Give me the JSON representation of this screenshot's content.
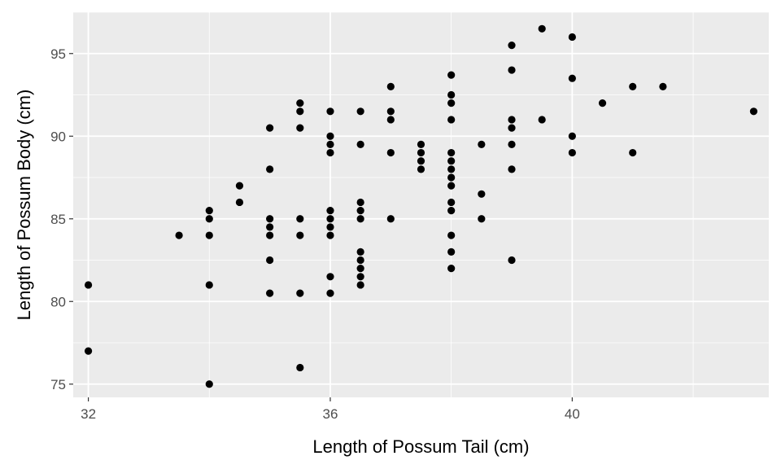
{
  "chart_data": {
    "type": "scatter",
    "title": "",
    "xlabel": "Length of Possum Tail (cm)",
    "ylabel": "Length of Possum Body (cm)",
    "xlim": [
      31.75,
      43.25
    ],
    "ylim": [
      74.2,
      97.5
    ],
    "xticks": [
      32,
      36,
      40
    ],
    "xtick_labels": [
      "32",
      "36",
      "40"
    ],
    "yticks": [
      75,
      80,
      85,
      90,
      95
    ],
    "ytick_labels": [
      "75",
      "80",
      "85",
      "90",
      "95"
    ],
    "grid": true,
    "legend": "none",
    "colors": {
      "panel": "#ebebeb",
      "grid": "#ffffff",
      "point": "#000000"
    },
    "points": [
      [
        32,
        81
      ],
      [
        32,
        77
      ],
      [
        33.5,
        84
      ],
      [
        34,
        85.5
      ],
      [
        34,
        85
      ],
      [
        34,
        84
      ],
      [
        34,
        81
      ],
      [
        34,
        75
      ],
      [
        34.5,
        87
      ],
      [
        34.5,
        86
      ],
      [
        35,
        90.5
      ],
      [
        35,
        88
      ],
      [
        35,
        85
      ],
      [
        35,
        84.5
      ],
      [
        35,
        84
      ],
      [
        35,
        82.5
      ],
      [
        35,
        80.5
      ],
      [
        35.5,
        92
      ],
      [
        35.5,
        91.5
      ],
      [
        35.5,
        90.5
      ],
      [
        35.5,
        85
      ],
      [
        35.5,
        84
      ],
      [
        35.5,
        80.5
      ],
      [
        35.5,
        76
      ],
      [
        36,
        91.5
      ],
      [
        36,
        90
      ],
      [
        36,
        89.5
      ],
      [
        36,
        89
      ],
      [
        36,
        85.5
      ],
      [
        36,
        85
      ],
      [
        36,
        84.5
      ],
      [
        36,
        84
      ],
      [
        36,
        81.5
      ],
      [
        36,
        80.5
      ],
      [
        36.5,
        91.5
      ],
      [
        36.5,
        89.5
      ],
      [
        36.5,
        86
      ],
      [
        36.5,
        85.5
      ],
      [
        36.5,
        85
      ],
      [
        36.5,
        83
      ],
      [
        36.5,
        82.5
      ],
      [
        36.5,
        82
      ],
      [
        36.5,
        81.5
      ],
      [
        36.5,
        81
      ],
      [
        37,
        93
      ],
      [
        37,
        91.5
      ],
      [
        37,
        91
      ],
      [
        37,
        89
      ],
      [
        37,
        85
      ],
      [
        37.5,
        89.5
      ],
      [
        37.5,
        89
      ],
      [
        37.5,
        88.5
      ],
      [
        37.5,
        88
      ],
      [
        38,
        93.7
      ],
      [
        38,
        92.5
      ],
      [
        38,
        92
      ],
      [
        38,
        91
      ],
      [
        38,
        89
      ],
      [
        38,
        88.5
      ],
      [
        38,
        88
      ],
      [
        38,
        87.5
      ],
      [
        38,
        87
      ],
      [
        38,
        86
      ],
      [
        38,
        85.5
      ],
      [
        38,
        84
      ],
      [
        38,
        83
      ],
      [
        38,
        82
      ],
      [
        38.5,
        89.5
      ],
      [
        38.5,
        86.5
      ],
      [
        38.5,
        85
      ],
      [
        39,
        95.5
      ],
      [
        39,
        94
      ],
      [
        39,
        91
      ],
      [
        39,
        90.5
      ],
      [
        39,
        89.5
      ],
      [
        39,
        88
      ],
      [
        39,
        82.5
      ],
      [
        39.5,
        96.5
      ],
      [
        39.5,
        91
      ],
      [
        40,
        96
      ],
      [
        40,
        93.5
      ],
      [
        40,
        90
      ],
      [
        40,
        89
      ],
      [
        40.5,
        92
      ],
      [
        41,
        93
      ],
      [
        41,
        89
      ],
      [
        41.5,
        93
      ],
      [
        43,
        91.5
      ]
    ]
  }
}
